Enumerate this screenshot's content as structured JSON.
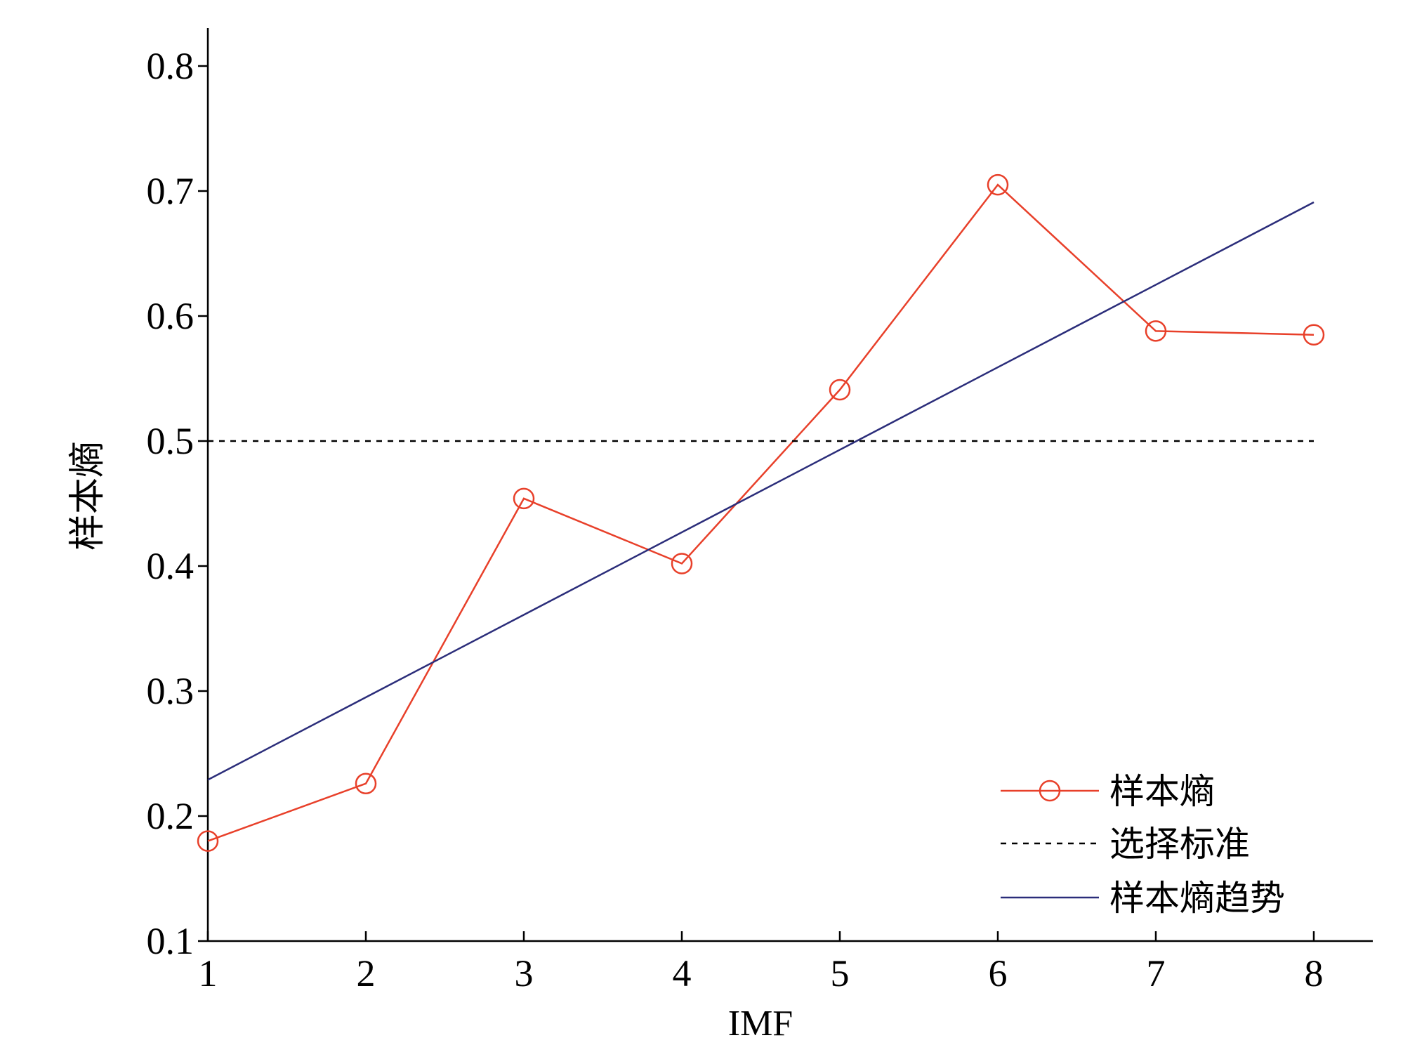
{
  "chart_data": {
    "type": "line",
    "title": "",
    "xlabel": "IMF",
    "ylabel": "样本熵",
    "x": [
      1,
      2,
      3,
      4,
      5,
      6,
      7,
      8
    ],
    "x_ticks": [
      "1",
      "2",
      "3",
      "4",
      "5",
      "6",
      "7",
      "8"
    ],
    "y_ticks": [
      "0.1",
      "0.2",
      "0.3",
      "0.4",
      "0.5",
      "0.6",
      "0.7",
      "0.8"
    ],
    "xlim": [
      1,
      8.4
    ],
    "ylim": [
      0.1,
      0.83
    ],
    "grid": false,
    "legend_position": "bottom-right",
    "series": [
      {
        "name": "样本熵",
        "style": "solid-line-circle-markers",
        "color": "#e8402a",
        "x": [
          1,
          2,
          3,
          4,
          5,
          6,
          7,
          8
        ],
        "values": [
          0.18,
          0.226,
          0.454,
          0.402,
          0.541,
          0.705,
          0.588,
          0.585
        ]
      },
      {
        "name": "选择标准",
        "style": "dashed-line",
        "color": "#000000",
        "x": [
          1,
          8
        ],
        "values": [
          0.5,
          0.5
        ]
      },
      {
        "name": "样本熵趋势",
        "style": "solid-line",
        "color": "#2b2d7a",
        "x": [
          1,
          8
        ],
        "values": [
          0.229,
          0.691
        ]
      }
    ]
  }
}
